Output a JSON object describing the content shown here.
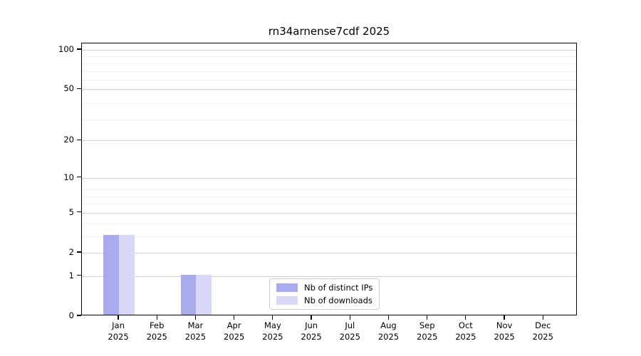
{
  "chart_data": {
    "type": "bar",
    "title": "rn34arnense7cdf 2025",
    "categories": [
      "Jan",
      "Feb",
      "Mar",
      "Apr",
      "May",
      "Jun",
      "Jul",
      "Aug",
      "Sep",
      "Oct",
      "Nov",
      "Dec"
    ],
    "x_year_label": "2025",
    "series": [
      {
        "name": "Nb of distinct IPs",
        "color": "#aaaaee",
        "values": [
          3,
          0,
          1,
          0,
          0,
          0,
          0,
          0,
          0,
          0,
          0,
          0
        ]
      },
      {
        "name": "Nb of downloads",
        "color": "#d9d9f7",
        "values": [
          3,
          0,
          1,
          0,
          0,
          0,
          0,
          0,
          0,
          0,
          0,
          0
        ]
      }
    ],
    "y_ticks": [
      0,
      1,
      2,
      5,
      10,
      20,
      50,
      100
    ],
    "y_minor_gridlines": [
      1,
      2,
      3,
      4,
      5,
      6,
      7,
      8,
      19,
      29,
      39,
      49,
      59,
      69,
      79,
      89
    ],
    "y_scale": "log10(value+1)",
    "y_axis_top_value": 112,
    "xlim": [
      -0.96,
      11.88
    ],
    "bar_width": 0.4,
    "grid": true,
    "legend_position": "lower center",
    "colors": {
      "major_grid": "#d0d0d0",
      "minor_grid": "#f0f0f0",
      "spine": "#000000"
    }
  }
}
